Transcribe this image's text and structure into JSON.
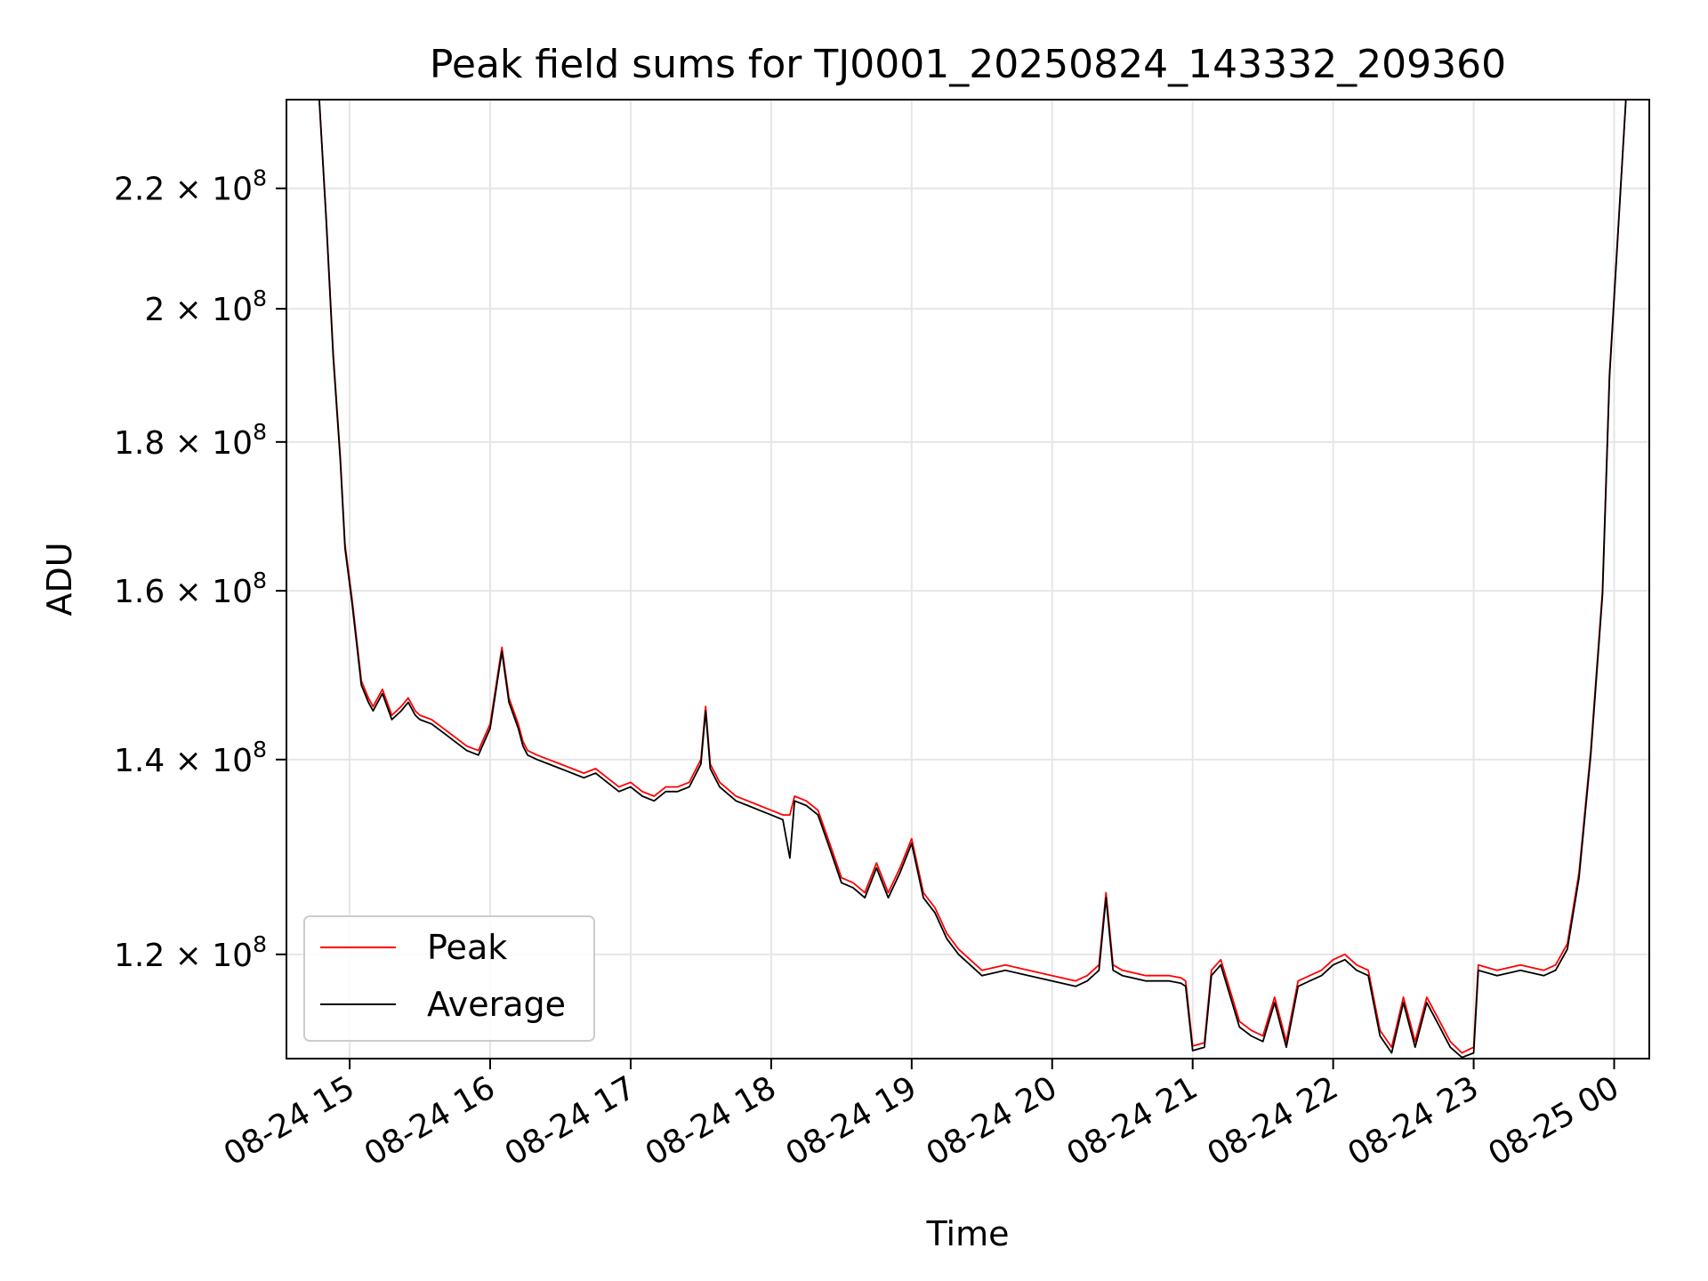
{
  "chart_data": {
    "type": "line",
    "title": "Peak field sums for TJ0001_20250824_143332_209360",
    "xlabel": "Time",
    "ylabel": "ADU",
    "x_ticks": [
      "08-24 15",
      "08-24 16",
      "08-24 17",
      "08-24 18",
      "08-24 19",
      "08-24 20",
      "08-24 21",
      "08-24 22",
      "08-24 23",
      "08-25 00"
    ],
    "y_scale": "log",
    "y_ticks": [
      {
        "value": 120000000,
        "mantissa": "1.2",
        "exp": "8"
      },
      {
        "value": 140000000,
        "mantissa": "1.4",
        "exp": "8"
      },
      {
        "value": 160000000,
        "mantissa": "1.6",
        "exp": "8"
      },
      {
        "value": 180000000,
        "mantissa": "1.8",
        "exp": "8"
      },
      {
        "value": 200000000,
        "mantissa": "2",
        "exp": "8"
      },
      {
        "value": 220000000,
        "mantissa": "2.2",
        "exp": "8"
      }
    ],
    "xlim": [
      "2025-08-24 14:33",
      "2025-08-25 00:15"
    ],
    "ylim": [
      110500000,
      236000000
    ],
    "grid": true,
    "legend": {
      "location": "lower-left"
    },
    "series": [
      {
        "name": "Peak",
        "color": "#ff0000",
        "x": [
          "2025-08-24 14:47",
          "2025-08-24 14:50",
          "2025-08-24 14:53",
          "2025-08-24 14:56",
          "2025-08-24 14:58",
          "2025-08-24 15:01",
          "2025-08-24 15:05",
          "2025-08-24 15:08",
          "2025-08-24 15:10",
          "2025-08-24 15:14",
          "2025-08-24 15:18",
          "2025-08-24 15:22",
          "2025-08-24 15:25",
          "2025-08-24 15:28",
          "2025-08-24 15:30",
          "2025-08-24 15:35",
          "2025-08-24 15:40",
          "2025-08-24 15:45",
          "2025-08-24 15:50",
          "2025-08-24 15:55",
          "2025-08-24 16:00",
          "2025-08-24 16:05",
          "2025-08-24 16:08",
          "2025-08-24 16:12",
          "2025-08-24 16:14",
          "2025-08-24 16:16",
          "2025-08-24 16:20",
          "2025-08-24 16:25",
          "2025-08-24 16:30",
          "2025-08-24 16:35",
          "2025-08-24 16:40",
          "2025-08-24 16:45",
          "2025-08-24 16:50",
          "2025-08-24 16:55",
          "2025-08-24 17:00",
          "2025-08-24 17:05",
          "2025-08-24 17:10",
          "2025-08-24 17:15",
          "2025-08-24 17:20",
          "2025-08-24 17:25",
          "2025-08-24 17:30",
          "2025-08-24 17:32",
          "2025-08-24 17:34",
          "2025-08-24 17:38",
          "2025-08-24 17:45",
          "2025-08-24 17:50",
          "2025-08-24 17:55",
          "2025-08-24 18:00",
          "2025-08-24 18:05",
          "2025-08-24 18:08",
          "2025-08-24 18:10",
          "2025-08-24 18:15",
          "2025-08-24 18:20",
          "2025-08-24 18:25",
          "2025-08-24 18:30",
          "2025-08-24 18:35",
          "2025-08-24 18:40",
          "2025-08-24 18:45",
          "2025-08-24 18:50",
          "2025-08-24 18:55",
          "2025-08-24 19:00",
          "2025-08-24 19:05",
          "2025-08-24 19:10",
          "2025-08-24 19:15",
          "2025-08-24 19:20",
          "2025-08-24 19:25",
          "2025-08-24 19:30",
          "2025-08-24 19:40",
          "2025-08-24 19:50",
          "2025-08-24 20:00",
          "2025-08-24 20:10",
          "2025-08-24 20:15",
          "2025-08-24 20:20",
          "2025-08-24 20:23",
          "2025-08-24 20:26",
          "2025-08-24 20:30",
          "2025-08-24 20:40",
          "2025-08-24 20:50",
          "2025-08-24 20:55",
          "2025-08-24 20:57",
          "2025-08-24 21:00",
          "2025-08-24 21:05",
          "2025-08-24 21:08",
          "2025-08-24 21:12",
          "2025-08-24 21:20",
          "2025-08-24 21:25",
          "2025-08-24 21:30",
          "2025-08-24 21:35",
          "2025-08-24 21:40",
          "2025-08-24 21:45",
          "2025-08-24 21:50",
          "2025-08-24 21:55",
          "2025-08-24 22:00",
          "2025-08-24 22:05",
          "2025-08-24 22:10",
          "2025-08-24 22:15",
          "2025-08-24 22:20",
          "2025-08-24 22:25",
          "2025-08-24 22:30",
          "2025-08-24 22:35",
          "2025-08-24 22:40",
          "2025-08-24 22:45",
          "2025-08-24 22:50",
          "2025-08-24 22:55",
          "2025-08-24 23:00",
          "2025-08-24 23:02",
          "2025-08-24 23:10",
          "2025-08-24 23:20",
          "2025-08-24 23:30",
          "2025-08-24 23:35",
          "2025-08-24 23:40",
          "2025-08-24 23:45",
          "2025-08-24 23:50",
          "2025-08-24 23:55",
          "2025-08-24 23:58",
          "2025-08-25 00:05"
        ],
        "y": [
          236000000,
          215000000,
          193000000,
          178000000,
          166000000,
          159000000,
          149000000,
          147000000,
          146000000,
          148000000,
          145000000,
          146000000,
          147000000,
          145500000,
          145000000,
          144500000,
          143500000,
          142500000,
          141500000,
          141000000,
          144000000,
          153000000,
          147000000,
          144000000,
          142000000,
          141000000,
          140500000,
          140000000,
          139500000,
          139000000,
          138500000,
          139000000,
          138000000,
          137000000,
          137500000,
          136500000,
          136000000,
          137000000,
          137000000,
          137500000,
          140000000,
          146000000,
          139500000,
          137500000,
          136000000,
          135500000,
          135000000,
          134500000,
          134000000,
          134000000,
          136000000,
          135500000,
          134500000,
          131000000,
          127500000,
          127000000,
          126000000,
          129000000,
          126000000,
          128500000,
          131500000,
          126000000,
          124500000,
          122000000,
          120500000,
          119500000,
          118500000,
          119000000,
          118500000,
          118000000,
          117500000,
          118000000,
          119000000,
          126000000,
          119000000,
          118500000,
          118000000,
          118000000,
          117800000,
          117500000,
          111600000,
          111900000,
          118500000,
          119500000,
          113800000,
          113000000,
          112500000,
          116000000,
          112000000,
          117500000,
          118000000,
          118500000,
          119500000,
          120000000,
          119000000,
          118500000,
          113000000,
          111500000,
          116000000,
          112000000,
          116000000,
          114000000,
          112000000,
          111000000,
          111500000,
          119000000,
          118500000,
          119000000,
          118500000,
          119000000,
          121000000,
          128000000,
          141000000,
          160000000,
          190000000,
          236000000
        ]
      },
      {
        "name": "Average",
        "color": "#000000",
        "x": [
          "2025-08-24 14:47",
          "2025-08-24 14:50",
          "2025-08-24 14:53",
          "2025-08-24 14:56",
          "2025-08-24 14:58",
          "2025-08-24 15:01",
          "2025-08-24 15:05",
          "2025-08-24 15:08",
          "2025-08-24 15:10",
          "2025-08-24 15:14",
          "2025-08-24 15:18",
          "2025-08-24 15:22",
          "2025-08-24 15:25",
          "2025-08-24 15:28",
          "2025-08-24 15:30",
          "2025-08-24 15:35",
          "2025-08-24 15:40",
          "2025-08-24 15:45",
          "2025-08-24 15:50",
          "2025-08-24 15:55",
          "2025-08-24 16:00",
          "2025-08-24 16:05",
          "2025-08-24 16:08",
          "2025-08-24 16:12",
          "2025-08-24 16:14",
          "2025-08-24 16:16",
          "2025-08-24 16:20",
          "2025-08-24 16:25",
          "2025-08-24 16:30",
          "2025-08-24 16:35",
          "2025-08-24 16:40",
          "2025-08-24 16:45",
          "2025-08-24 16:50",
          "2025-08-24 16:55",
          "2025-08-24 17:00",
          "2025-08-24 17:05",
          "2025-08-24 17:10",
          "2025-08-24 17:15",
          "2025-08-24 17:20",
          "2025-08-24 17:25",
          "2025-08-24 17:30",
          "2025-08-24 17:32",
          "2025-08-24 17:34",
          "2025-08-24 17:38",
          "2025-08-24 17:45",
          "2025-08-24 17:50",
          "2025-08-24 17:55",
          "2025-08-24 18:00",
          "2025-08-24 18:05",
          "2025-08-24 18:08",
          "2025-08-24 18:10",
          "2025-08-24 18:15",
          "2025-08-24 18:20",
          "2025-08-24 18:25",
          "2025-08-24 18:30",
          "2025-08-24 18:35",
          "2025-08-24 18:40",
          "2025-08-24 18:45",
          "2025-08-24 18:50",
          "2025-08-24 18:55",
          "2025-08-24 19:00",
          "2025-08-24 19:05",
          "2025-08-24 19:10",
          "2025-08-24 19:15",
          "2025-08-24 19:20",
          "2025-08-24 19:25",
          "2025-08-24 19:30",
          "2025-08-24 19:40",
          "2025-08-24 19:50",
          "2025-08-24 20:00",
          "2025-08-24 20:10",
          "2025-08-24 20:15",
          "2025-08-24 20:20",
          "2025-08-24 20:23",
          "2025-08-24 20:26",
          "2025-08-24 20:30",
          "2025-08-24 20:40",
          "2025-08-24 20:50",
          "2025-08-24 20:55",
          "2025-08-24 20:57",
          "2025-08-24 21:00",
          "2025-08-24 21:05",
          "2025-08-24 21:08",
          "2025-08-24 21:12",
          "2025-08-24 21:20",
          "2025-08-24 21:25",
          "2025-08-24 21:30",
          "2025-08-24 21:35",
          "2025-08-24 21:40",
          "2025-08-24 21:45",
          "2025-08-24 21:50",
          "2025-08-24 21:55",
          "2025-08-24 22:00",
          "2025-08-24 22:05",
          "2025-08-24 22:10",
          "2025-08-24 22:15",
          "2025-08-24 22:20",
          "2025-08-24 22:25",
          "2025-08-24 22:30",
          "2025-08-24 22:35",
          "2025-08-24 22:40",
          "2025-08-24 22:45",
          "2025-08-24 22:50",
          "2025-08-24 22:55",
          "2025-08-24 23:00",
          "2025-08-24 23:02",
          "2025-08-24 23:10",
          "2025-08-24 23:20",
          "2025-08-24 23:30",
          "2025-08-24 23:35",
          "2025-08-24 23:40",
          "2025-08-24 23:45",
          "2025-08-24 23:50",
          "2025-08-24 23:55",
          "2025-08-24 23:58",
          "2025-08-25 00:05"
        ],
        "y": [
          236000000,
          214500000,
          192500000,
          177500000,
          165500000,
          158500000,
          148500000,
          146500000,
          145500000,
          147500000,
          144500000,
          145500000,
          146500000,
          145000000,
          144500000,
          144000000,
          143000000,
          142000000,
          141000000,
          140500000,
          143500000,
          152500000,
          146500000,
          143500000,
          141500000,
          140500000,
          140000000,
          139500000,
          139000000,
          138500000,
          138000000,
          138500000,
          137500000,
          136500000,
          137000000,
          136000000,
          135500000,
          136500000,
          136500000,
          137000000,
          139500000,
          145500000,
          139000000,
          137000000,
          135500000,
          135000000,
          134500000,
          134000000,
          133500000,
          129500000,
          135500000,
          135000000,
          134000000,
          130500000,
          127000000,
          126500000,
          125500000,
          128500000,
          125500000,
          128000000,
          131000000,
          125500000,
          124000000,
          121500000,
          120000000,
          119000000,
          118000000,
          118500000,
          118000000,
          117500000,
          117000000,
          117500000,
          118500000,
          125500000,
          118500000,
          118000000,
          117500000,
          117500000,
          117300000,
          117000000,
          111200000,
          111500000,
          118000000,
          119000000,
          113300000,
          112500000,
          112000000,
          115500000,
          111500000,
          117000000,
          117500000,
          118000000,
          119000000,
          119500000,
          118500000,
          118000000,
          112500000,
          111000000,
          115500000,
          111500000,
          115500000,
          113500000,
          111500000,
          110600000,
          111000000,
          118500000,
          118000000,
          118500000,
          118000000,
          118500000,
          120500000,
          127500000,
          140500000,
          159500000,
          189500000,
          236000000
        ]
      }
    ]
  }
}
